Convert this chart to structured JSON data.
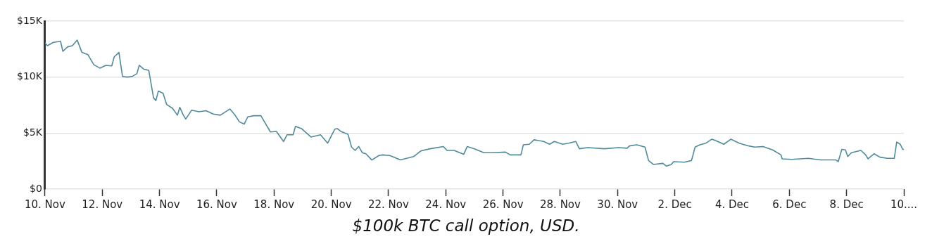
{
  "chart_data": {
    "type": "line",
    "annotations": [
      "$100k BTC call option, USD."
    ],
    "x": [
      "--11-10T00:00",
      "--11-10T02:00",
      "--11-10T07:00",
      "--11-10T13:00",
      "--11-10T15:00",
      "--11-10T19:00",
      "--11-10T23:00",
      "--11-11T03:00",
      "--11-11T07:00",
      "--11-11T12:00",
      "--11-11T17:00",
      "--11-11T22:00",
      "--11-12T03:00",
      "--11-12T08:00",
      "--11-12T10:00",
      "--11-12T14:00",
      "--11-12T17:00",
      "--11-12T21:00",
      "--11-13T01:00",
      "--11-13T05:00",
      "--11-13T07:00",
      "--11-13T11:00",
      "--11-13T15:00",
      "--11-13T19:00",
      "--11-13T21:00",
      "--11-13T23:00",
      "--11-14T03:00",
      "--11-14T06:00",
      "--11-14T11:00",
      "--11-14T15:00",
      "--11-14T17:00",
      "--11-14T20:00",
      "--11-14T22:00",
      "--11-15T03:00",
      "--11-15T09:00",
      "--11-15T15:00",
      "--11-15T21:00",
      "--11-16T03:00",
      "--11-16T11:00",
      "--11-16T15:00",
      "--11-16T19:00",
      "--11-16T23:00",
      "--11-17T02:00",
      "--11-17T07:00",
      "--11-17T13:00",
      "--11-17T16:00",
      "--11-17T21:00",
      "--11-18T02:00",
      "--11-18T08:00",
      "--11-18T11:00",
      "--11-18T16:00",
      "--11-18T18:00",
      "--11-18T23:00",
      "--11-19T07:00",
      "--11-19T15:00",
      "--11-19T21:00",
      "--11-20T02:00",
      "--11-20T03:00",
      "--11-20T05:00",
      "--11-20T08:00",
      "--11-20T14:00",
      "--11-20T17:00",
      "--11-20T20:00",
      "--11-20T23:00",
      "--11-21T02:00",
      "--11-21T05:00",
      "--11-21T10:00",
      "--11-21T16:00",
      "--11-21T19:00",
      "--11-22T01:00",
      "--11-22T10:00",
      "--11-22T21:00",
      "--11-23T03:00",
      "--11-23T11:00",
      "--11-23T22:00",
      "--11-24T01:00",
      "--11-24T07:00",
      "--11-24T15:00",
      "--11-24T18:00",
      "--11-25T00:00",
      "--11-25T08:00",
      "--11-25T16:00",
      "--11-26T02:00",
      "--11-26T06:00",
      "--11-26T15:00",
      "--11-26T17:00",
      "--11-26T22:00",
      "--11-27T02:00",
      "--11-27T10:00",
      "--11-27T15:00",
      "--11-27T19:00",
      "--11-28T02:00",
      "--11-28T07:00",
      "--11-28T13:00",
      "--11-28T16:00",
      "--11-28T23:00",
      "--11-29T13:00",
      "--11-30T01:00",
      "--11-30T08:00",
      "--11-30T10:00",
      "--11-30T16:00",
      "--11-30T23:00",
      "--12-01T02:00",
      "--12-01T06:00",
      "--12-01T14:00",
      "--12-01T17:00",
      "--12-01T21:00",
      "--12-01T23:00",
      "--12-02T08:00",
      "--12-02T14:00",
      "--12-02T17:00",
      "--12-02T21:00",
      "--12-03T02:00",
      "--12-03T07:00",
      "--12-03T12:00",
      "--12-03T17:00",
      "--12-03T23:00",
      "--12-04T06:00",
      "--12-04T14:00",
      "--12-04T19:00",
      "--12-05T02:00",
      "--12-05T10:00",
      "--12-05T17:00",
      "--12-05T18:00",
      "--12-06T02:00",
      "--12-06T16:00",
      "--12-07T02:00",
      "--12-07T15:00",
      "--12-07T17:00",
      "--12-07T20:00",
      "--12-07T23:00",
      "--12-08T01:00",
      "--12-08T04:00",
      "--12-08T12:00",
      "--12-08T16:00",
      "--12-08T18:00",
      "--12-08T23:00",
      "--12-09T04:00",
      "--12-09T10:00",
      "--12-09T16:00",
      "--12-09T18:00",
      "--12-09T21:00",
      "--12-09T23:00",
      "--12-10T00:00"
    ],
    "values": [
      13050,
      12800,
      13100,
      13200,
      12300,
      12700,
      12800,
      13300,
      12200,
      12000,
      11100,
      10800,
      11050,
      11000,
      11800,
      12200,
      10050,
      10000,
      10050,
      10300,
      11050,
      10700,
      10600,
      8150,
      7900,
      8750,
      8550,
      7550,
      7200,
      6600,
      7300,
      6600,
      6250,
      7050,
      6900,
      7000,
      6700,
      6600,
      7150,
      6650,
      6000,
      5800,
      6450,
      6550,
      6550,
      6000,
      5100,
      5150,
      4250,
      4850,
      4850,
      5600,
      5400,
      4650,
      4850,
      4100,
      5150,
      5350,
      5400,
      5150,
      4900,
      3750,
      3450,
      3800,
      3250,
      3150,
      2600,
      3000,
      3050,
      3000,
      2600,
      2900,
      3400,
      3600,
      3800,
      3450,
      3450,
      3100,
      3800,
      3600,
      3250,
      3250,
      3300,
      3050,
      3050,
      3950,
      4000,
      4400,
      4250,
      4000,
      4250,
      4000,
      4100,
      4250,
      3600,
      3700,
      3600,
      3700,
      3650,
      3850,
      3950,
      3750,
      2550,
      2200,
      2300,
      2050,
      2200,
      2450,
      2400,
      2550,
      3750,
      3950,
      4100,
      4450,
      4250,
      4000,
      4450,
      4100,
      3850,
      3750,
      3800,
      3500,
      3050,
      2700,
      2650,
      2750,
      2600,
      2600,
      2450,
      3550,
      3500,
      2900,
      3250,
      3450,
      3050,
      2700,
      3150,
      2850,
      2750,
      2750,
      4200,
      4000,
      3550,
      3550
    ],
    "color": "#4f8a9a",
    "xlim": [
      "--11-10",
      "--12-10"
    ],
    "xticks": [
      {
        "value": "--11-10",
        "label": "10. Nov"
      },
      {
        "value": "--11-12",
        "label": "12. Nov"
      },
      {
        "value": "--11-14",
        "label": "14. Nov"
      },
      {
        "value": "--11-16",
        "label": "16. Nov"
      },
      {
        "value": "--11-18",
        "label": "18. Nov"
      },
      {
        "value": "--11-20",
        "label": "20. Nov"
      },
      {
        "value": "--11-22",
        "label": "22. Nov"
      },
      {
        "value": "--11-24",
        "label": "24. Nov"
      },
      {
        "value": "--11-26",
        "label": "26. Nov"
      },
      {
        "value": "--11-28",
        "label": "28. Nov"
      },
      {
        "value": "--11-30",
        "label": "30. Nov"
      },
      {
        "value": "--12-02",
        "label": "2. Dec"
      },
      {
        "value": "--12-04",
        "label": "4. Dec"
      },
      {
        "value": "--12-06",
        "label": "6. Dec"
      },
      {
        "value": "--12-08",
        "label": "8. Dec"
      },
      {
        "value": "--12-10",
        "label": "10...."
      }
    ],
    "ylim": [
      0,
      15000
    ],
    "yticks": [
      {
        "value": 0,
        "label": "$0"
      },
      {
        "value": 5000,
        "label": "$5K"
      },
      {
        "value": 10000,
        "label": "$10K"
      },
      {
        "value": 15000,
        "label": "$15K"
      }
    ],
    "grid": "y",
    "marker": "none",
    "line_style": "solid"
  }
}
